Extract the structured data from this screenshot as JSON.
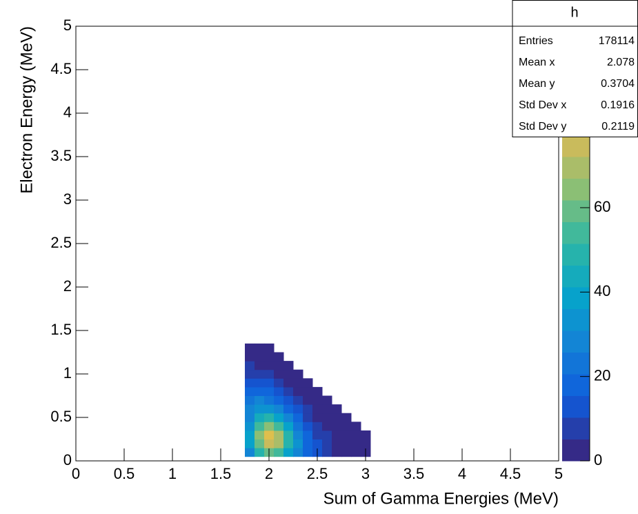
{
  "chart_data": {
    "type": "heatmap",
    "xlabel": "Sum of Gamma Energies (MeV)",
    "ylabel": "Electron Energy (MeV)",
    "xlim": [
      0,
      5
    ],
    "xticks": [
      0,
      0.5,
      1,
      1.5,
      2,
      2.5,
      3,
      3.5,
      4,
      4.5,
      5
    ],
    "ylim": [
      0,
      5
    ],
    "yticks": [
      0,
      0.5,
      1,
      1.5,
      2,
      2.5,
      3,
      3.5,
      4,
      4.5,
      5
    ],
    "zlim": [
      0,
      103
    ],
    "zticks": [
      0,
      20,
      40,
      60
    ],
    "palette": [
      "#352a87",
      "#0f5cdd",
      "#1481d6",
      "#06a4ca",
      "#2eb7a4",
      "#87bf77",
      "#d1bb59",
      "#fec832",
      "#f9fb0e"
    ],
    "xbins": [
      1.75,
      1.85,
      1.95,
      2.05,
      2.15,
      2.25,
      2.35,
      2.45,
      2.55,
      2.65,
      2.75,
      2.85,
      2.95,
      3.05
    ],
    "ybins": [
      0.05,
      0.15,
      0.25,
      0.35,
      0.45,
      0.55,
      0.65,
      0.75,
      0.85,
      0.95,
      1.05,
      1.15,
      1.25,
      1.35
    ],
    "values": [
      [
        30,
        50,
        60,
        55,
        40,
        28,
        18,
        12,
        7,
        4,
        2,
        1,
        0.5
      ],
      [
        38,
        60,
        75,
        68,
        48,
        32,
        20,
        12,
        7,
        4,
        2,
        0.8,
        0.3
      ],
      [
        38,
        62,
        78,
        70,
        48,
        30,
        18,
        10,
        6,
        3,
        1.5,
        0.5,
        0.2
      ],
      [
        35,
        55,
        62,
        55,
        38,
        24,
        14,
        8,
        4,
        2,
        0.8,
        0.2,
        0
      ],
      [
        30,
        45,
        48,
        40,
        28,
        18,
        10,
        5,
        2.5,
        1,
        0.3,
        0,
        0
      ],
      [
        26,
        35,
        34,
        28,
        20,
        12,
        6,
        3,
        1.2,
        0.4,
        0,
        0,
        0
      ],
      [
        22,
        27,
        25,
        20,
        13,
        7,
        3.5,
        1.5,
        0.5,
        0,
        0,
        0,
        0
      ],
      [
        18,
        20,
        17,
        12,
        8,
        4,
        1.5,
        0.5,
        0,
        0,
        0,
        0,
        0
      ],
      [
        14,
        14,
        11,
        7,
        4,
        1.5,
        0.5,
        0,
        0,
        0,
        0,
        0,
        0
      ],
      [
        10,
        9,
        6,
        3.5,
        1.5,
        0.4,
        0,
        0,
        0,
        0,
        0,
        0,
        0
      ],
      [
        6,
        5,
        3,
        1,
        0.3,
        0,
        0,
        0,
        0,
        0,
        0,
        0,
        0
      ],
      [
        3,
        2,
        1,
        0.3,
        0,
        0,
        0,
        0,
        0,
        0,
        0,
        0,
        0
      ],
      [
        1,
        0.5,
        0.2,
        0,
        0,
        0,
        0,
        0,
        0,
        0,
        0,
        0,
        0
      ]
    ],
    "stats": {
      "title": "h",
      "rows": [
        [
          "Entries",
          178114
        ],
        [
          "Mean x",
          2.078
        ],
        [
          "Mean y",
          0.3704
        ],
        [
          "Std Dev x",
          0.1916
        ],
        [
          "Std Dev y",
          0.2119
        ]
      ]
    }
  }
}
